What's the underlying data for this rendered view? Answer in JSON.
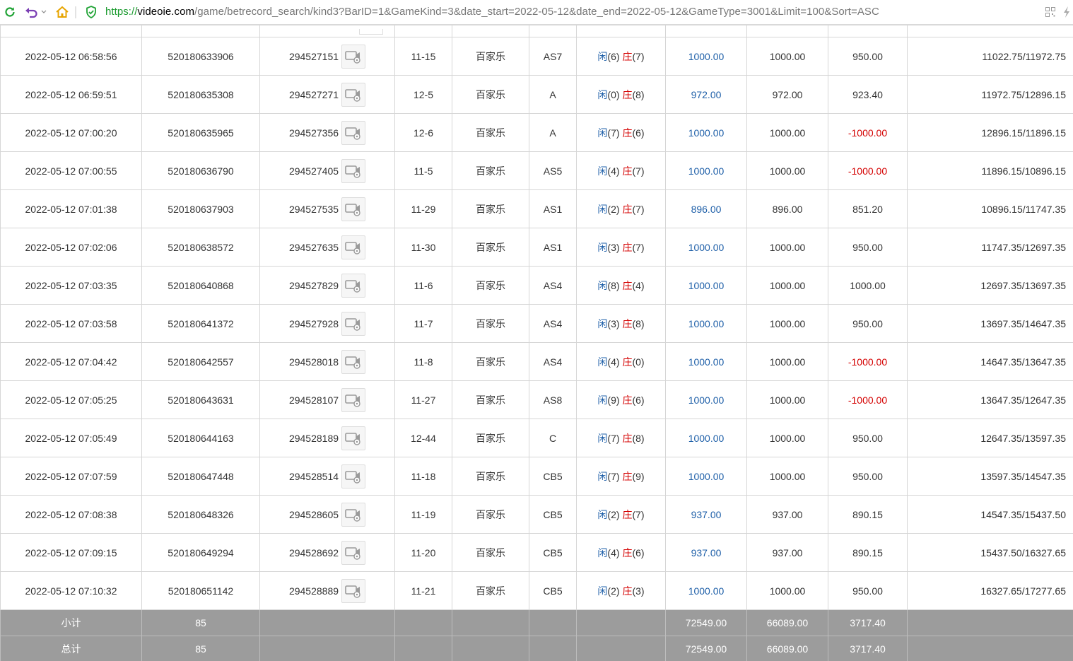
{
  "browser": {
    "url_scheme": "https://",
    "url_host": "videoie.com",
    "url_path": "/game/betrecord_search/kind3?BarID=1&GameKind=3&date_start=2022-05-12&date_end=2022-05-12&GameType=3001&Limit=100&Sort=ASC"
  },
  "colors": {
    "player": "#1e5fa8",
    "banker": "#d40000",
    "negative": "#d40000",
    "summary_bg": "#9c9c9c"
  },
  "result_labels": {
    "player": "闲",
    "banker": "庄"
  },
  "rows": [
    {
      "time": "2022-05-12 06:58:56",
      "bet_id": "520180633906",
      "round_id": "294527151",
      "shoe": "11-15",
      "game": "百家乐",
      "table": "AS7",
      "player": "6",
      "banker": "7",
      "bet": "1000.00",
      "valid": "1000.00",
      "win": "950.00",
      "balance": "11022.75/11972.75"
    },
    {
      "time": "2022-05-12 06:59:51",
      "bet_id": "520180635308",
      "round_id": "294527271",
      "shoe": "12-5",
      "game": "百家乐",
      "table": "A",
      "player": "0",
      "banker": "8",
      "bet": "972.00",
      "valid": "972.00",
      "win": "923.40",
      "balance": "11972.75/12896.15"
    },
    {
      "time": "2022-05-12 07:00:20",
      "bet_id": "520180635965",
      "round_id": "294527356",
      "shoe": "12-6",
      "game": "百家乐",
      "table": "A",
      "player": "7",
      "banker": "6",
      "bet": "1000.00",
      "valid": "1000.00",
      "win": "-1000.00",
      "balance": "12896.15/11896.15"
    },
    {
      "time": "2022-05-12 07:00:55",
      "bet_id": "520180636790",
      "round_id": "294527405",
      "shoe": "11-5",
      "game": "百家乐",
      "table": "AS5",
      "player": "4",
      "banker": "7",
      "bet": "1000.00",
      "valid": "1000.00",
      "win": "-1000.00",
      "balance": "11896.15/10896.15"
    },
    {
      "time": "2022-05-12 07:01:38",
      "bet_id": "520180637903",
      "round_id": "294527535",
      "shoe": "11-29",
      "game": "百家乐",
      "table": "AS1",
      "player": "2",
      "banker": "7",
      "bet": "896.00",
      "valid": "896.00",
      "win": "851.20",
      "balance": "10896.15/11747.35"
    },
    {
      "time": "2022-05-12 07:02:06",
      "bet_id": "520180638572",
      "round_id": "294527635",
      "shoe": "11-30",
      "game": "百家乐",
      "table": "AS1",
      "player": "3",
      "banker": "7",
      "bet": "1000.00",
      "valid": "1000.00",
      "win": "950.00",
      "balance": "11747.35/12697.35"
    },
    {
      "time": "2022-05-12 07:03:35",
      "bet_id": "520180640868",
      "round_id": "294527829",
      "shoe": "11-6",
      "game": "百家乐",
      "table": "AS4",
      "player": "8",
      "banker": "4",
      "bet": "1000.00",
      "valid": "1000.00",
      "win": "1000.00",
      "balance": "12697.35/13697.35"
    },
    {
      "time": "2022-05-12 07:03:58",
      "bet_id": "520180641372",
      "round_id": "294527928",
      "shoe": "11-7",
      "game": "百家乐",
      "table": "AS4",
      "player": "3",
      "banker": "8",
      "bet": "1000.00",
      "valid": "1000.00",
      "win": "950.00",
      "balance": "13697.35/14647.35"
    },
    {
      "time": "2022-05-12 07:04:42",
      "bet_id": "520180642557",
      "round_id": "294528018",
      "shoe": "11-8",
      "game": "百家乐",
      "table": "AS4",
      "player": "4",
      "banker": "0",
      "bet": "1000.00",
      "valid": "1000.00",
      "win": "-1000.00",
      "balance": "14647.35/13647.35"
    },
    {
      "time": "2022-05-12 07:05:25",
      "bet_id": "520180643631",
      "round_id": "294528107",
      "shoe": "11-27",
      "game": "百家乐",
      "table": "AS8",
      "player": "9",
      "banker": "6",
      "bet": "1000.00",
      "valid": "1000.00",
      "win": "-1000.00",
      "balance": "13647.35/12647.35"
    },
    {
      "time": "2022-05-12 07:05:49",
      "bet_id": "520180644163",
      "round_id": "294528189",
      "shoe": "12-44",
      "game": "百家乐",
      "table": "C",
      "player": "7",
      "banker": "8",
      "bet": "1000.00",
      "valid": "1000.00",
      "win": "950.00",
      "balance": "12647.35/13597.35"
    },
    {
      "time": "2022-05-12 07:07:59",
      "bet_id": "520180647448",
      "round_id": "294528514",
      "shoe": "11-18",
      "game": "百家乐",
      "table": "CB5",
      "player": "7",
      "banker": "9",
      "bet": "1000.00",
      "valid": "1000.00",
      "win": "950.00",
      "balance": "13597.35/14547.35"
    },
    {
      "time": "2022-05-12 07:08:38",
      "bet_id": "520180648326",
      "round_id": "294528605",
      "shoe": "11-19",
      "game": "百家乐",
      "table": "CB5",
      "player": "2",
      "banker": "7",
      "bet": "937.00",
      "valid": "937.00",
      "win": "890.15",
      "balance": "14547.35/15437.50"
    },
    {
      "time": "2022-05-12 07:09:15",
      "bet_id": "520180649294",
      "round_id": "294528692",
      "shoe": "11-20",
      "game": "百家乐",
      "table": "CB5",
      "player": "4",
      "banker": "6",
      "bet": "937.00",
      "valid": "937.00",
      "win": "890.15",
      "balance": "15437.50/16327.65"
    },
    {
      "time": "2022-05-12 07:10:32",
      "bet_id": "520180651142",
      "round_id": "294528889",
      "shoe": "11-21",
      "game": "百家乐",
      "table": "CB5",
      "player": "2",
      "banker": "3",
      "bet": "1000.00",
      "valid": "1000.00",
      "win": "950.00",
      "balance": "16327.65/17277.65"
    }
  ],
  "subtotal": {
    "label": "小计",
    "count": "85",
    "bet": "72549.00",
    "valid": "66089.00",
    "win": "3717.40"
  },
  "total": {
    "label": "总计",
    "count": "85",
    "bet": "72549.00",
    "valid": "66089.00",
    "win": "3717.40"
  }
}
